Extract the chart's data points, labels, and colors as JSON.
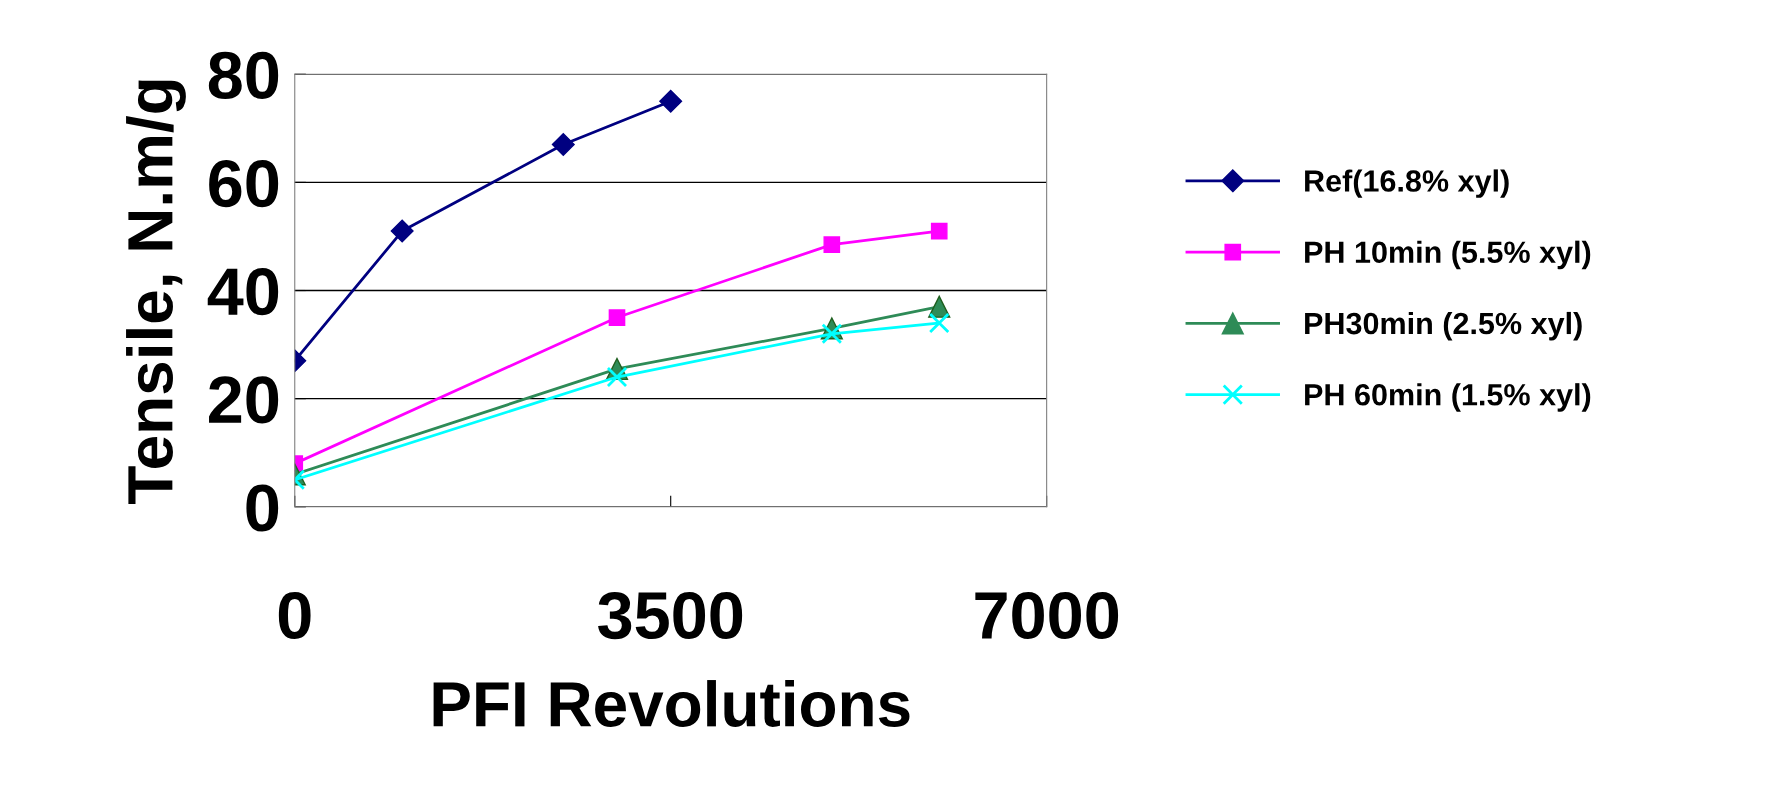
{
  "chart_data": {
    "type": "line",
    "xlabel": "PFI Revolutions",
    "ylabel": "Tensile, N.m/g",
    "xlim": [
      0,
      7000
    ],
    "xticks": [
      0,
      3500,
      7000
    ],
    "ylim": [
      0,
      80
    ],
    "yticks": [
      0,
      20,
      40,
      60,
      80
    ],
    "grid": "y",
    "legend": "right",
    "line_style": "solid",
    "series": [
      {
        "name": "Ref(16.8% xyl)",
        "color": "#000080",
        "marker": "diamond",
        "x": [
          0,
          1000,
          2500,
          3500
        ],
        "values": [
          27,
          51,
          67,
          75
        ]
      },
      {
        "name": "PH 10min (5.5% xyl)",
        "color": "#ff00ff",
        "marker": "square",
        "x": [
          0,
          3000,
          5000,
          6000
        ],
        "values": [
          8,
          35,
          48.5,
          51
        ]
      },
      {
        "name": "PH30min (2.5% xyl)",
        "color": "#2e8b57",
        "marker": "triangle",
        "x": [
          0,
          3000,
          5000,
          6000
        ],
        "values": [
          6,
          25.5,
          33,
          37
        ]
      },
      {
        "name": "PH 60min (1.5% xyl)",
        "color": "#00ffff",
        "marker": "cross",
        "x": [
          0,
          3000,
          5000,
          6000
        ],
        "values": [
          5,
          24,
          32,
          34
        ]
      }
    ]
  }
}
